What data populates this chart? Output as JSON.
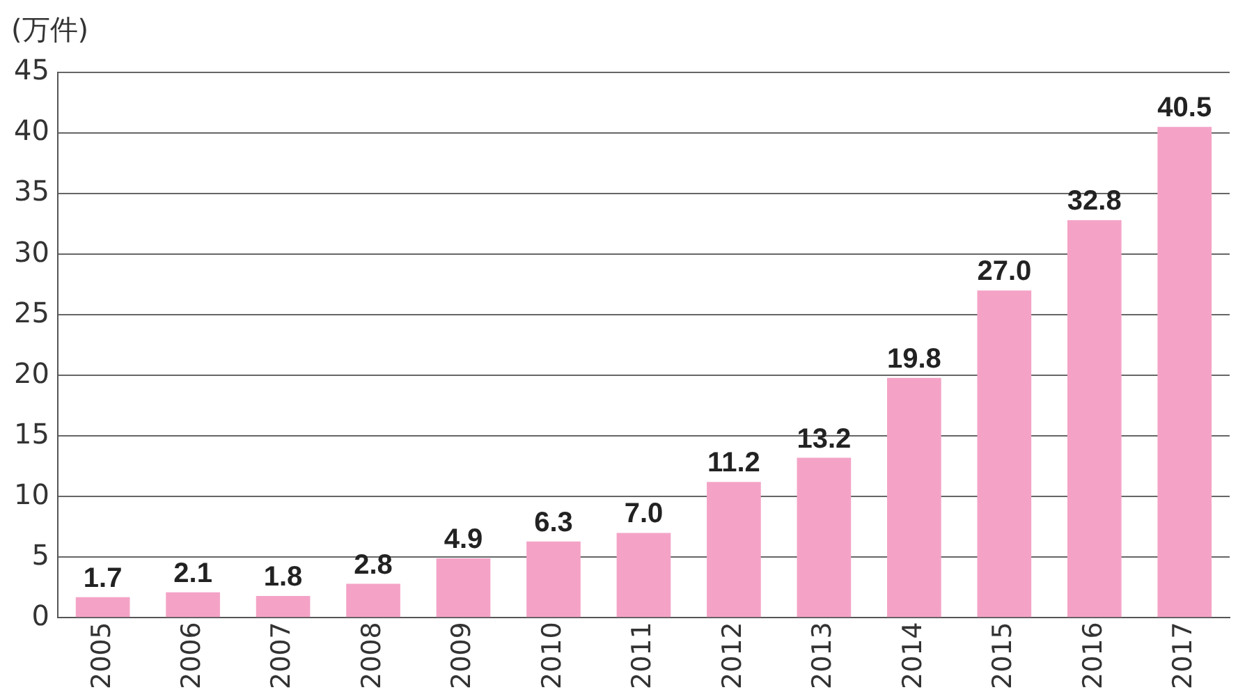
{
  "chart_data": {
    "type": "bar",
    "ylabel": "(万件)",
    "categories": [
      "2005",
      "2006",
      "2007",
      "2008",
      "2009",
      "2010",
      "2011",
      "2012",
      "2013",
      "2014",
      "2015",
      "2016",
      "2017"
    ],
    "values": [
      1.7,
      2.1,
      1.8,
      2.8,
      4.9,
      6.3,
      7.0,
      11.2,
      13.2,
      19.8,
      27.0,
      32.8,
      40.5
    ],
    "value_labels": [
      "1.7",
      "2.1",
      "1.8",
      "2.8",
      "4.9",
      "6.3",
      "7.0",
      "11.2",
      "13.2",
      "19.8",
      "27.0",
      "32.8",
      "40.5"
    ],
    "color": "#f4a3c6",
    "ylim": [
      0,
      45
    ],
    "yticks": [
      0,
      5,
      10,
      15,
      20,
      25,
      30,
      35,
      40,
      45
    ],
    "grid": "y",
    "legend": false
  }
}
